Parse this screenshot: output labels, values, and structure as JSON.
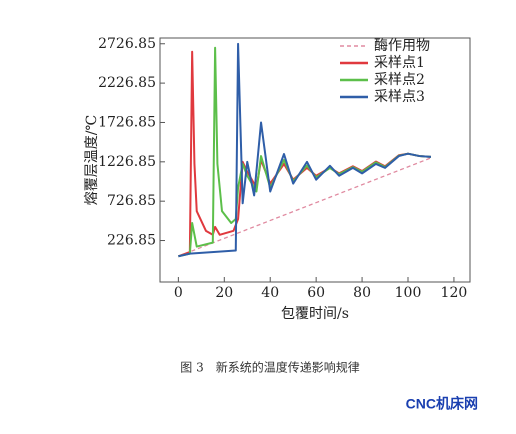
{
  "chart_data": {
    "type": "line",
    "ylabel": "熔覆层温度/℃",
    "xlabel": "包覆时间/s",
    "xlim": [
      -8,
      127
    ],
    "xticks": [
      0,
      20,
      40,
      60,
      80,
      100,
      120
    ],
    "ylim": [
      -300,
      2800
    ],
    "yticks": [
      226.85,
      726.85,
      1226.85,
      1726.85,
      2226.85,
      2726.85
    ],
    "legend": "upper right",
    "series": [
      {
        "name": "酶作用物",
        "color": "#e08aa0",
        "dashed": true,
        "x": [
          0,
          110
        ],
        "values": [
          26.85,
          1276.85
        ]
      },
      {
        "name": "采样点1",
        "color": "#e0393e",
        "x": [
          0,
          5,
          6,
          7,
          8,
          12,
          15,
          16,
          18,
          24,
          26,
          28,
          30,
          34,
          36,
          40,
          46,
          50,
          56,
          60,
          66,
          70,
          76,
          80,
          86,
          90,
          96,
          100,
          105,
          110
        ],
        "values": [
          26.85,
          80,
          2626,
          1200,
          600,
          350,
          300,
          400,
          300,
          350,
          500,
          1226,
          1100,
          900,
          1250,
          950,
          1200,
          1000,
          1150,
          1050,
          1150,
          1080,
          1170,
          1110,
          1230,
          1170,
          1310,
          1330,
          1300,
          1290
        ]
      },
      {
        "name": "采样点2",
        "color": "#5cbf4a",
        "x": [
          0,
          5,
          6,
          8,
          15,
          16,
          17,
          19,
          23,
          25,
          26,
          28,
          30,
          34,
          36,
          40,
          46,
          50,
          56,
          60,
          66,
          70,
          76,
          80,
          86,
          90,
          96,
          100,
          105,
          110
        ],
        "values": [
          26.85,
          60,
          450,
          150,
          200,
          2676,
          1200,
          600,
          450,
          500,
          900,
          1200,
          1050,
          850,
          1300,
          900,
          1250,
          980,
          1180,
          1030,
          1150,
          1070,
          1160,
          1100,
          1220,
          1160,
          1305,
          1330,
          1300,
          1290
        ]
      },
      {
        "name": "采样点3",
        "color": "#2f5ea8",
        "x": [
          0,
          5,
          25,
          26,
          28,
          30,
          33,
          36,
          40,
          46,
          50,
          56,
          60,
          66,
          70,
          76,
          80,
          86,
          90,
          96,
          100,
          105,
          110
        ],
        "values": [
          26.85,
          60,
          100,
          2726,
          700,
          1226,
          800,
          1726,
          850,
          1326,
          950,
          1226,
          1000,
          1176,
          1050,
          1150,
          1080,
          1200,
          1150,
          1300,
          1330,
          1300,
          1290
        ]
      }
    ]
  },
  "caption": "图 3　新系统的温度传递影响规律",
  "watermark": "CNC机床网"
}
